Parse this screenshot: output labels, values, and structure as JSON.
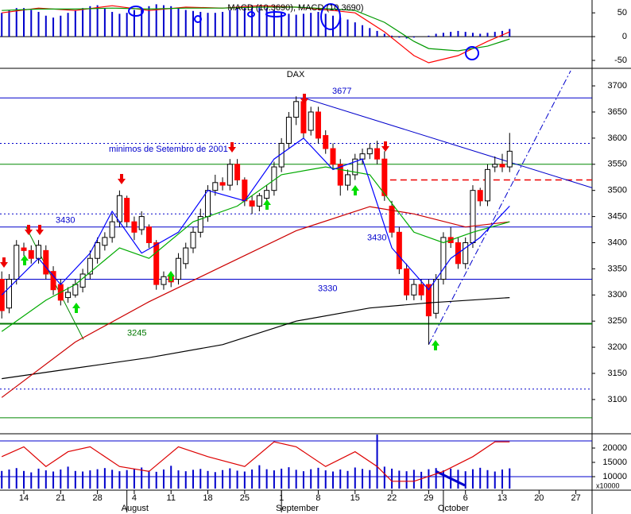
{
  "chart_data": [
    {
      "type": "bar",
      "title": "MACD (10.3690), MACD (10.3690)",
      "color": "#0000cc",
      "xlim": [
        -0.24,
        80.2
      ],
      "ylim": [
        -65,
        77
      ],
      "yticks": [
        50,
        0,
        -50
      ],
      "values": [
        50,
        56,
        60,
        60,
        56,
        52,
        44,
        40,
        44,
        50,
        56,
        60,
        64,
        66,
        60,
        52,
        48,
        50,
        56,
        60,
        64,
        68,
        66,
        64,
        60,
        56,
        54,
        52,
        50,
        50,
        52,
        56,
        60,
        64,
        66,
        64,
        60,
        56,
        52,
        48,
        46,
        48,
        50,
        52,
        48,
        44,
        40,
        36,
        30,
        24,
        18,
        12,
        6,
        2,
        -2,
        -4,
        -2,
        0,
        2,
        6,
        8,
        10,
        12,
        10,
        8,
        6,
        8,
        10,
        12,
        16
      ],
      "lines": [
        {
          "color": "#ff0000",
          "x": [
            0,
            5,
            10,
            15,
            20,
            25,
            30,
            35,
            40,
            45,
            48,
            52,
            56,
            58,
            62,
            66,
            69
          ],
          "values": [
            50,
            60,
            55,
            65,
            55,
            62,
            60,
            65,
            62,
            55,
            50,
            10,
            -40,
            -55,
            -40,
            -10,
            10
          ]
        },
        {
          "color": "#009900",
          "x": [
            0,
            5,
            10,
            15,
            20,
            25,
            30,
            35,
            40,
            45,
            48,
            52,
            56,
            58,
            62,
            66,
            69
          ],
          "values": [
            55,
            58,
            58,
            60,
            58,
            60,
            60,
            62,
            62,
            58,
            55,
            30,
            -10,
            -25,
            -30,
            -20,
            -5
          ]
        }
      ]
    },
    {
      "type": "candlestick",
      "title": "DAX",
      "up_color": "#ffffff",
      "down_color": "#ff0000",
      "xlim": [
        -0.24,
        80.2
      ],
      "ylim": [
        3036,
        3729
      ],
      "yticks": [
        3100,
        3150,
        3200,
        3250,
        3300,
        3350,
        3400,
        3450,
        3500,
        3550,
        3600,
        3650,
        3700
      ],
      "open": [
        3330,
        3275,
        3330,
        3390,
        3385,
        3370,
        3385,
        3345,
        3320,
        3295,
        3300,
        3315,
        3340,
        3370,
        3395,
        3410,
        3440,
        3485,
        3440,
        3425,
        3430,
        3400,
        3320,
        3335,
        3330,
        3360,
        3390,
        3420,
        3450,
        3500,
        3515,
        3510,
        3550,
        3520,
        3480,
        3470,
        3485,
        3500,
        3545,
        3590,
        3640,
        3670,
        3615,
        3650,
        3605,
        3580,
        3550,
        3510,
        3530,
        3560,
        3570,
        3580,
        3560,
        3470,
        3420,
        3350,
        3300,
        3320,
        3320,
        3265,
        3330,
        3410,
        3400,
        3360,
        3400,
        3500,
        3480,
        3545,
        3550,
        3545
      ],
      "high": [
        3345,
        3340,
        3405,
        3400,
        3395,
        3405,
        3395,
        3355,
        3330,
        3315,
        3330,
        3350,
        3385,
        3410,
        3420,
        3455,
        3500,
        3490,
        3450,
        3460,
        3435,
        3405,
        3345,
        3345,
        3380,
        3400,
        3430,
        3465,
        3510,
        3530,
        3525,
        3560,
        3560,
        3525,
        3490,
        3495,
        3510,
        3555,
        3600,
        3650,
        3680,
        3675,
        3660,
        3660,
        3615,
        3590,
        3560,
        3540,
        3570,
        3580,
        3590,
        3595,
        3575,
        3480,
        3430,
        3360,
        3330,
        3330,
        3330,
        3340,
        3420,
        3430,
        3410,
        3410,
        3510,
        3505,
        3550,
        3565,
        3570,
        3610
      ],
      "low": [
        3255,
        3265,
        3320,
        3375,
        3360,
        3360,
        3330,
        3300,
        3280,
        3285,
        3295,
        3305,
        3330,
        3360,
        3385,
        3400,
        3430,
        3430,
        3405,
        3415,
        3390,
        3310,
        3310,
        3315,
        3320,
        3350,
        3380,
        3410,
        3440,
        3490,
        3500,
        3500,
        3510,
        3470,
        3455,
        3460,
        3475,
        3490,
        3535,
        3580,
        3625,
        3600,
        3605,
        3590,
        3570,
        3540,
        3490,
        3500,
        3520,
        3550,
        3560,
        3550,
        3480,
        3410,
        3340,
        3290,
        3290,
        3290,
        3205,
        3255,
        3320,
        3390,
        3350,
        3350,
        3390,
        3470,
        3470,
        3535,
        3535,
        3535
      ],
      "close": [
        3270,
        3330,
        3395,
        3385,
        3370,
        3395,
        3340,
        3310,
        3290,
        3305,
        3320,
        3340,
        3370,
        3400,
        3410,
        3440,
        3490,
        3440,
        3420,
        3450,
        3400,
        3320,
        3335,
        3325,
        3370,
        3390,
        3420,
        3450,
        3500,
        3515,
        3510,
        3550,
        3520,
        3480,
        3470,
        3490,
        3500,
        3545,
        3590,
        3640,
        3670,
        3610,
        3650,
        3600,
        3580,
        3550,
        3510,
        3530,
        3560,
        3570,
        3580,
        3560,
        3490,
        3420,
        3350,
        3300,
        3320,
        3300,
        3260,
        3330,
        3410,
        3400,
        3360,
        3400,
        3500,
        3480,
        3540,
        3550,
        3545,
        3575
      ],
      "lines": [
        {
          "color": "#000000",
          "x": [
            0,
            10,
            20,
            30,
            40,
            50,
            58,
            69
          ],
          "values": [
            3140,
            3160,
            3180,
            3205,
            3250,
            3275,
            3285,
            3295
          ]
        },
        {
          "color": "#cc0000",
          "x": [
            0,
            10,
            20,
            30,
            40,
            50,
            56,
            63,
            69
          ],
          "values": [
            3104,
            3210,
            3287,
            3355,
            3423,
            3469,
            3455,
            3430,
            3440
          ]
        },
        {
          "color": "#00aa00",
          "x": [
            0,
            6,
            10,
            16,
            20,
            26,
            32,
            38,
            44,
            50,
            56,
            60,
            64,
            69
          ],
          "values": [
            3230,
            3290,
            3320,
            3390,
            3370,
            3440,
            3470,
            3530,
            3545,
            3530,
            3420,
            3400,
            3420,
            3440
          ]
        },
        {
          "color": "#0000ff",
          "x": [
            0,
            5,
            8,
            12,
            15,
            19,
            24,
            28,
            33,
            37,
            41,
            45,
            49,
            53,
            58,
            61,
            65,
            69
          ],
          "values": [
            3300,
            3370,
            3320,
            3380,
            3460,
            3380,
            3420,
            3500,
            3480,
            3560,
            3600,
            3540,
            3560,
            3390,
            3310,
            3370,
            3410,
            3470
          ]
        }
      ],
      "levels": [
        {
          "value": 3677,
          "color": "#0000cc",
          "dash": "solid",
          "labeled": true
        },
        {
          "value": 3550,
          "color": "#008800",
          "dash": "solid",
          "labeled": false
        },
        {
          "value": 3430,
          "color": "#0000cc",
          "dash": "solid",
          "labeled": true
        },
        {
          "value": 3330,
          "color": "#0000cc",
          "dash": "solid",
          "labeled": true
        },
        {
          "value": 3245,
          "color": "#007700",
          "dash": "solid",
          "labeled": true
        },
        {
          "value": 3065,
          "color": "#008800",
          "dash": "solid",
          "labeled": false
        },
        {
          "value": 3590,
          "color": "#0000cc",
          "dash": "dotted",
          "labeled": false
        },
        {
          "value": 3455,
          "color": "#0000cc",
          "dash": "dotted",
          "labeled": false
        },
        {
          "value": 3120,
          "color": "#0000cc",
          "dash": "dotted",
          "labeled": false
        },
        {
          "value": 3520,
          "color": "#ee0000",
          "dash": "dashed",
          "labeled": false
        }
      ],
      "trendlines": [
        {
          "color": "#0000cc",
          "dash": "solid",
          "x": [
            41,
            80.2
          ],
          "values": [
            3677,
            3505
          ]
        },
        {
          "color": "#0000cc",
          "dash": "dashdot",
          "x": [
            58,
            77.3
          ],
          "values": [
            3205,
            3729
          ]
        },
        {
          "color": "#008800",
          "dash": "solid",
          "x": [
            3.3,
            11.1
          ],
          "values": [
            3430,
            3215
          ]
        }
      ],
      "annotation": "minimos de Setembro de 2001"
    },
    {
      "type": "bar",
      "color": "#0000cc",
      "y_unit": "x10000",
      "xlim": [
        -0.24,
        80.2
      ],
      "ylim": [
        5833,
        24722
      ],
      "yticks": [
        20000,
        15000,
        10000
      ],
      "values": [
        12000,
        12500,
        13000,
        12000,
        11500,
        12800,
        12200,
        11800,
        12500,
        13500,
        12000,
        11800,
        12200,
        12600,
        13000,
        12400,
        11900,
        12300,
        12800,
        13200,
        12100,
        11700,
        12500,
        13800,
        12200,
        11900,
        12400,
        12700,
        12000,
        11600,
        12300,
        12900,
        12100,
        11800,
        12500,
        14000,
        12600,
        12200,
        12800,
        13300,
        12400,
        11900,
        12600,
        13100,
        12200,
        11800,
        12500,
        12000,
        13200,
        12700,
        12300,
        24700,
        13500,
        12800,
        12100,
        11900,
        12400,
        11700,
        12600,
        13000,
        12200,
        12800,
        12400,
        11900,
        12600,
        13100,
        12300,
        11800,
        12500,
        12900
      ],
      "y2lim": [
        0,
        100
      ],
      "lines": [
        {
          "color": "#dd0000",
          "axis": "y2",
          "x": [
            0,
            3,
            6,
            9,
            12,
            16,
            20,
            24,
            28,
            33,
            37,
            40,
            44,
            48,
            51,
            53,
            56,
            60,
            64,
            67,
            69
          ],
          "values": [
            60,
            80,
            40,
            70,
            80,
            40,
            30,
            80,
            60,
            40,
            90,
            80,
            40,
            70,
            40,
            10,
            10,
            30,
            60,
            90,
            90
          ]
        }
      ],
      "xticks": [
        {
          "value": 3,
          "label": "14"
        },
        {
          "value": 8,
          "label": "21"
        },
        {
          "value": 13,
          "label": "28"
        },
        {
          "value": 18,
          "label": "4"
        },
        {
          "value": 23,
          "label": "11"
        },
        {
          "value": 28,
          "label": "18"
        },
        {
          "value": 33,
          "label": "25"
        },
        {
          "value": 38,
          "label": "1"
        },
        {
          "value": 43,
          "label": "8"
        },
        {
          "value": 48,
          "label": "15"
        },
        {
          "value": 53,
          "label": "22"
        },
        {
          "value": 58,
          "label": "29"
        },
        {
          "value": 63,
          "label": "6"
        },
        {
          "value": 68,
          "label": "13"
        },
        {
          "value": 73,
          "label": "20"
        },
        {
          "value": 78,
          "label": "27"
        }
      ],
      "months": [
        {
          "value": 17,
          "label": "August"
        },
        {
          "value": 38,
          "label": "September"
        },
        {
          "value": 60,
          "label": "October"
        }
      ]
    }
  ]
}
